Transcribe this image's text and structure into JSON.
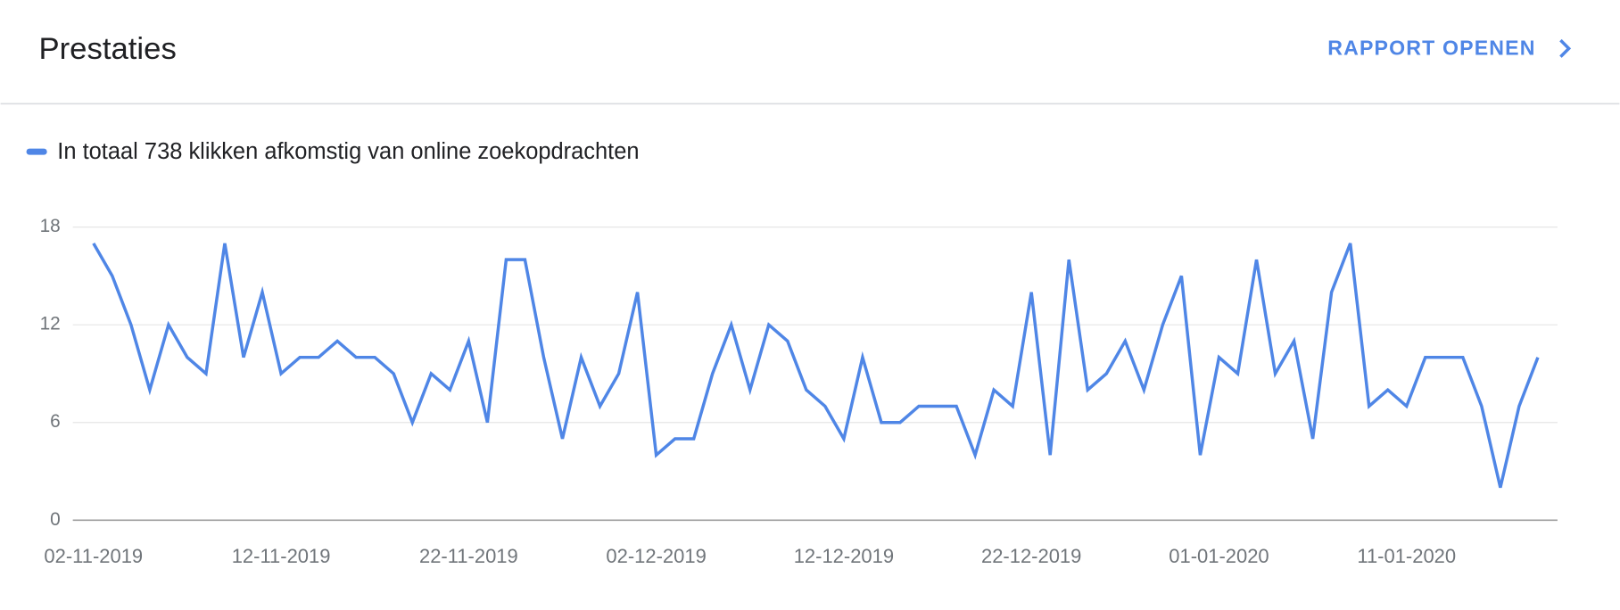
{
  "header": {
    "title": "Prestaties",
    "link": "RAPPORT OPENEN"
  },
  "chart_data": {
    "type": "line",
    "x": [
      "02-11-2019",
      "03-11-2019",
      "04-11-2019",
      "05-11-2019",
      "06-11-2019",
      "07-11-2019",
      "08-11-2019",
      "09-11-2019",
      "10-11-2019",
      "11-11-2019",
      "12-11-2019",
      "13-11-2019",
      "14-11-2019",
      "15-11-2019",
      "16-11-2019",
      "17-11-2019",
      "18-11-2019",
      "19-11-2019",
      "20-11-2019",
      "21-11-2019",
      "22-11-2019",
      "23-11-2019",
      "24-11-2019",
      "25-11-2019",
      "26-11-2019",
      "27-11-2019",
      "28-11-2019",
      "29-11-2019",
      "30-11-2019",
      "01-12-2019",
      "02-12-2019",
      "03-12-2019",
      "04-12-2019",
      "05-12-2019",
      "06-12-2019",
      "07-12-2019",
      "08-12-2019",
      "09-12-2019",
      "10-12-2019",
      "11-12-2019",
      "12-12-2019",
      "13-12-2019",
      "14-12-2019",
      "15-12-2019",
      "16-12-2019",
      "17-12-2019",
      "18-12-2019",
      "19-12-2019",
      "20-12-2019",
      "21-12-2019",
      "22-12-2019",
      "23-12-2019",
      "24-12-2019",
      "25-12-2019",
      "26-12-2019",
      "27-12-2019",
      "28-12-2019",
      "29-12-2019",
      "30-12-2019",
      "31-12-2019",
      "01-01-2020",
      "02-01-2020",
      "03-01-2020",
      "04-01-2020",
      "05-01-2020",
      "06-01-2020",
      "07-01-2020",
      "08-01-2020",
      "09-01-2020",
      "10-01-2020",
      "11-01-2020",
      "12-01-2020",
      "13-01-2020",
      "14-01-2020",
      "15-01-2020",
      "16-01-2020",
      "17-01-2020",
      "18-01-2020"
    ],
    "series": [
      {
        "name": "In totaal 738 klikken afkomstig van online zoekopdrachten",
        "color": "#4f86e6",
        "values": [
          17,
          15,
          12,
          8,
          12,
          10,
          9,
          17,
          10,
          14,
          9,
          10,
          10,
          11,
          10,
          10,
          9,
          6,
          9,
          8,
          11,
          6,
          16,
          16,
          10,
          5,
          10,
          7,
          9,
          14,
          4,
          5,
          5,
          9,
          12,
          8,
          12,
          11,
          8,
          7,
          5,
          10,
          6,
          6,
          7,
          7,
          7,
          4,
          8,
          7,
          14,
          4,
          16,
          8,
          9,
          11,
          8,
          12,
          15,
          4,
          10,
          9,
          16,
          9,
          11,
          5,
          14,
          17,
          7,
          8,
          7,
          10,
          10,
          10,
          7,
          2,
          7,
          10
        ]
      }
    ],
    "ylim": [
      0,
      18
    ],
    "yticks": [
      0,
      6,
      12,
      18
    ],
    "grid": true
  }
}
